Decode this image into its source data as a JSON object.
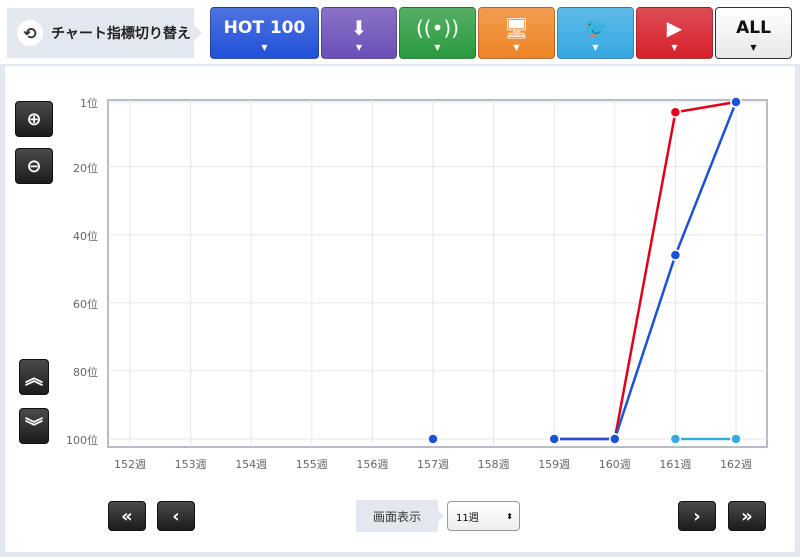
{
  "header": {
    "switch_label": "チャート指標切り替え",
    "switch_icon": "refresh-icon",
    "tabs": [
      {
        "key": "hot100",
        "label": "HOT 100",
        "icon": "",
        "color": "#2150d8"
      },
      {
        "key": "download",
        "label": "",
        "icon": "download-stream-icon",
        "glyph": "⬇",
        "color": "#6b4fb8"
      },
      {
        "key": "radio",
        "label": "",
        "icon": "radio-antenna-icon",
        "glyph": "((•))",
        "color": "#2a9a3e"
      },
      {
        "key": "sales",
        "label": "",
        "icon": "pc-disc-icon",
        "glyph": "🖥",
        "color": "#ef8424"
      },
      {
        "key": "twitter",
        "label": "",
        "icon": "twitter-icon",
        "glyph": "🐦",
        "color": "#35a9e2"
      },
      {
        "key": "youtube",
        "label": "",
        "icon": "youtube-icon",
        "glyph": "▶",
        "color": "#d6202a"
      },
      {
        "key": "all",
        "label": "ALL",
        "icon": "",
        "color": "#ffffff"
      }
    ]
  },
  "chart_data": {
    "type": "line",
    "categories": [
      "152週",
      "153週",
      "154週",
      "155週",
      "156週",
      "157週",
      "158週",
      "159週",
      "160週",
      "161週",
      "162週"
    ],
    "y_ticks": [
      {
        "v": 1,
        "label": "1位"
      },
      {
        "v": 20,
        "label": "20位"
      },
      {
        "v": 40,
        "label": "40位"
      },
      {
        "v": 60,
        "label": "60位"
      },
      {
        "v": 80,
        "label": "80位"
      },
      {
        "v": 100,
        "label": "100位"
      }
    ],
    "ylim": [
      100,
      1
    ],
    "y_reversed": true,
    "grid": true,
    "series": [
      {
        "key": "download",
        "color": "#4b3aa8",
        "values": [
          null,
          null,
          null,
          null,
          null,
          null,
          null,
          100,
          100,
          null,
          100
        ]
      },
      {
        "key": "twitter",
        "color": "#35a9e2",
        "values": [
          null,
          null,
          null,
          null,
          null,
          null,
          null,
          null,
          null,
          100,
          100
        ]
      },
      {
        "key": "youtube",
        "color": "#e0001c",
        "values": [
          null,
          null,
          null,
          null,
          null,
          null,
          null,
          null,
          100,
          4,
          1
        ]
      },
      {
        "key": "hot100",
        "color": "#1d52d6",
        "values": [
          null,
          null,
          null,
          null,
          null,
          100,
          null,
          100,
          100,
          46,
          1
        ]
      }
    ]
  },
  "controls": {
    "zoom_in": "zoom-in-icon",
    "zoom_out": "zoom-out-icon",
    "up": "double-chevron-up-icon",
    "down": "double-chevron-down-icon",
    "first": "«",
    "prev": "‹",
    "next": "›",
    "last": "»",
    "view_label": "画面表示",
    "view_value": "11週"
  }
}
